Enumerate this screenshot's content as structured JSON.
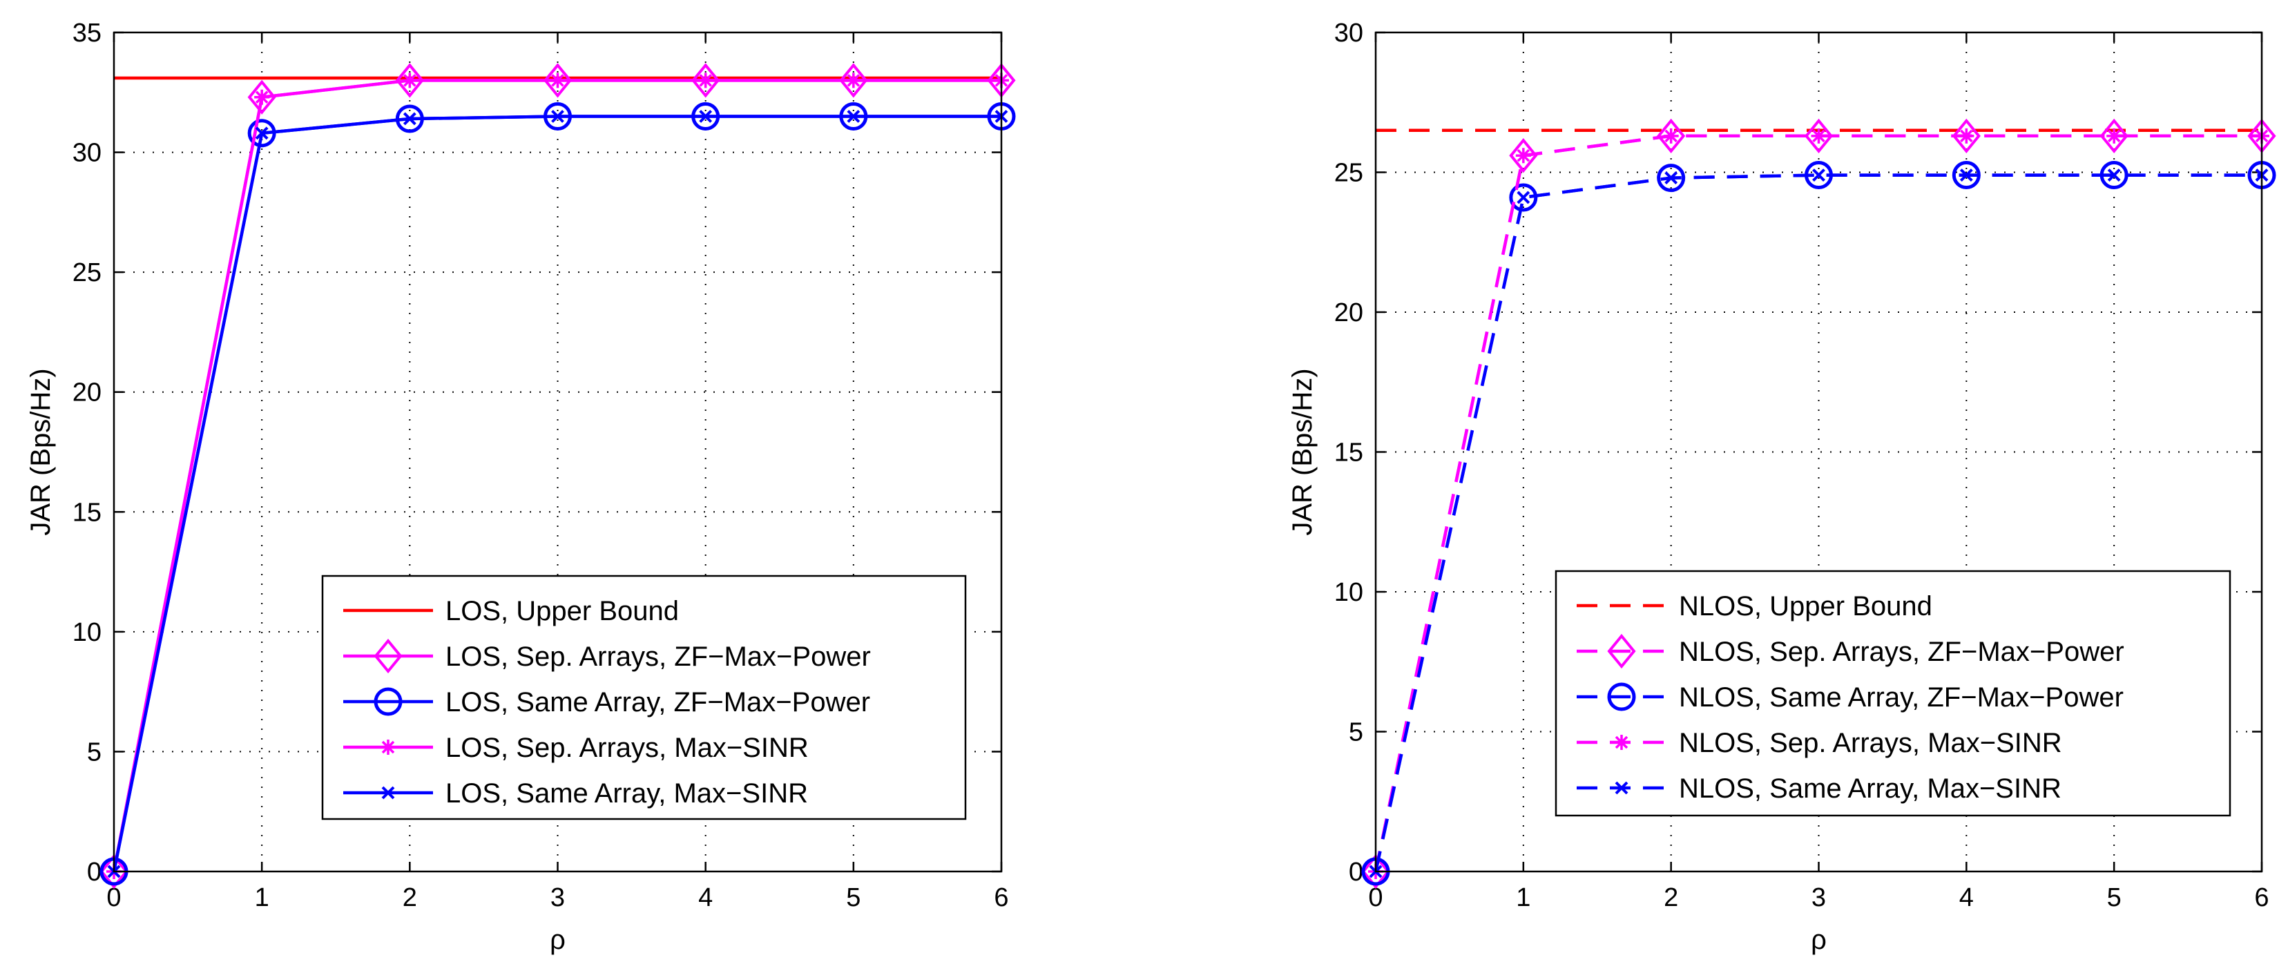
{
  "chart_data": [
    {
      "type": "line",
      "title": "",
      "xlabel": "ρ",
      "ylabel": "JAR (Bps/Hz)",
      "xlim": [
        0,
        6
      ],
      "ylim": [
        0,
        35
      ],
      "grid": true,
      "xticks": [
        "0",
        "1",
        "2",
        "3",
        "4",
        "5",
        "6"
      ],
      "yticks": [
        "0",
        "5",
        "10",
        "15",
        "20",
        "25",
        "30",
        "35"
      ],
      "legend_position": "bottom-right",
      "x": [
        0,
        1,
        2,
        3,
        4,
        5,
        6
      ],
      "series": [
        {
          "name": "LOS, Upper Bound",
          "color": "#ff0000",
          "dash": "solid",
          "marker": "none",
          "values": [
            33.1,
            33.1,
            33.1,
            33.1,
            33.1,
            33.1,
            33.1
          ]
        },
        {
          "name": "LOS, Sep. Arrays, ZF−Max−Power",
          "color": "#ff00ff",
          "dash": "solid",
          "marker": "diamond",
          "values": [
            0,
            32.3,
            33.0,
            33.0,
            33.0,
            33.0,
            33.0
          ]
        },
        {
          "name": "LOS, Same Array, ZF−Max−Power",
          "color": "#0000ff",
          "dash": "solid",
          "marker": "circle",
          "values": [
            0,
            30.8,
            31.4,
            31.5,
            31.5,
            31.5,
            31.5
          ]
        },
        {
          "name": "LOS, Sep. Arrays, Max−SINR",
          "color": "#ff00ff",
          "dash": "solid",
          "marker": "star",
          "values": [
            0,
            32.3,
            33.0,
            33.0,
            33.0,
            33.0,
            33.0
          ]
        },
        {
          "name": "LOS, Same Array, Max−SINR",
          "color": "#0000ff",
          "dash": "solid",
          "marker": "cross",
          "values": [
            0,
            30.8,
            31.4,
            31.5,
            31.5,
            31.5,
            31.5
          ]
        }
      ]
    },
    {
      "type": "line",
      "title": "",
      "xlabel": "ρ",
      "ylabel": "JAR (Bps/Hz)",
      "xlim": [
        0,
        6
      ],
      "ylim": [
        0,
        30
      ],
      "grid": true,
      "xticks": [
        "0",
        "1",
        "2",
        "3",
        "4",
        "5",
        "6"
      ],
      "yticks": [
        "0",
        "5",
        "10",
        "15",
        "20",
        "25",
        "30"
      ],
      "legend_position": "bottom-right",
      "x": [
        0,
        1,
        2,
        3,
        4,
        5,
        6
      ],
      "series": [
        {
          "name": "NLOS, Upper Bound",
          "color": "#ff0000",
          "dash": "dashed",
          "marker": "none",
          "values": [
            26.5,
            26.5,
            26.5,
            26.5,
            26.5,
            26.5,
            26.5
          ]
        },
        {
          "name": "NLOS, Sep. Arrays, ZF−Max−Power",
          "color": "#ff00ff",
          "dash": "dashed",
          "marker": "diamond",
          "values": [
            0,
            25.6,
            26.3,
            26.3,
            26.3,
            26.3,
            26.3
          ]
        },
        {
          "name": "NLOS, Same Array, ZF−Max−Power",
          "color": "#0000ff",
          "dash": "dashed",
          "marker": "circle",
          "values": [
            0,
            24.1,
            24.8,
            24.9,
            24.9,
            24.9,
            24.9
          ]
        },
        {
          "name": "NLOS, Sep. Arrays, Max−SINR",
          "color": "#ff00ff",
          "dash": "dashed",
          "marker": "star",
          "values": [
            0,
            25.6,
            26.3,
            26.3,
            26.3,
            26.3,
            26.3
          ]
        },
        {
          "name": "NLOS, Same Array, Max−SINR",
          "color": "#0000ff",
          "dash": "dashed",
          "marker": "cross",
          "values": [
            0,
            24.1,
            24.8,
            24.9,
            24.9,
            24.9,
            24.9
          ]
        }
      ]
    }
  ]
}
